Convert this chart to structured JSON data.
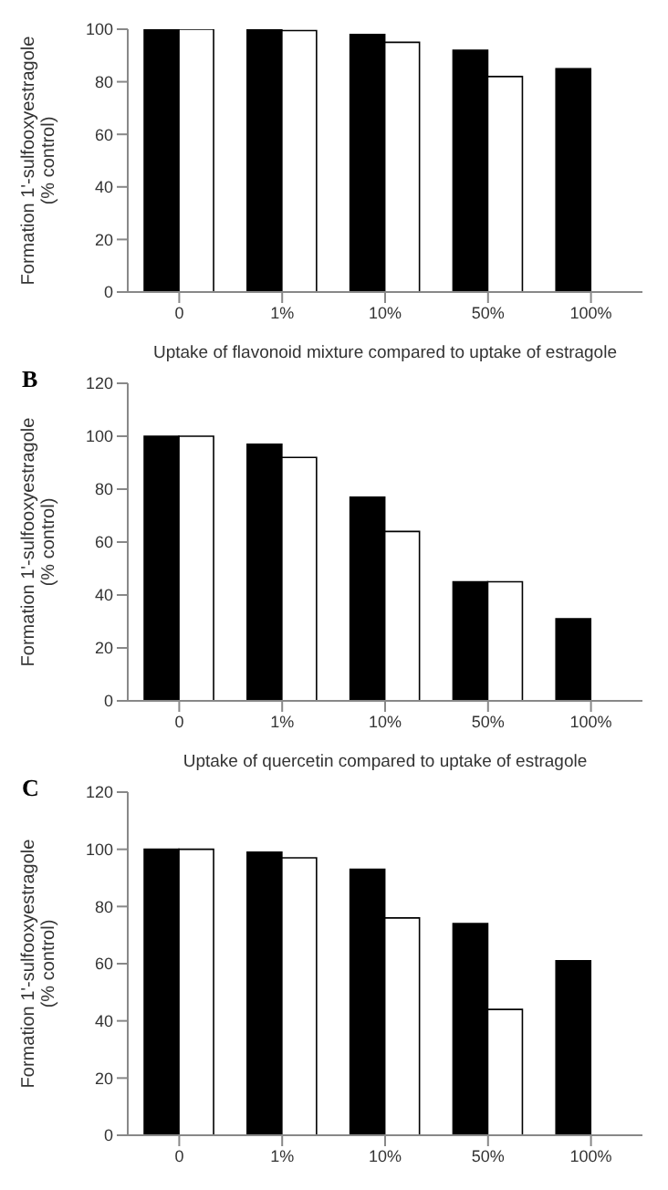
{
  "chart_data": [
    {
      "type": "bar",
      "xlabel": "Uptake of flavonoid mixture compared to uptake of estragole",
      "ylabel": "Formation 1'-sulfooxyestragole\n(% control)",
      "categories": [
        "0",
        "1%",
        "10%",
        "50%",
        "100%"
      ],
      "series": [
        {
          "color": "#000000",
          "values": [
            100,
            100,
            98,
            92,
            85
          ]
        },
        {
          "color": "#ffffff",
          "values": [
            100,
            99.5,
            95,
            82,
            null
          ]
        }
      ],
      "ylim": [
        0,
        100
      ],
      "yticks": [
        0,
        20,
        40,
        60,
        80,
        100
      ]
    },
    {
      "type": "bar",
      "title": "B",
      "xlabel": "Uptake of quercetin compared to uptake of estragole",
      "ylabel": "Formation 1'-sulfooxyestragole\n(% control)",
      "categories": [
        "0",
        "1%",
        "10%",
        "50%",
        "100%"
      ],
      "series": [
        {
          "color": "#000000",
          "values": [
            100,
            97,
            77,
            45,
            31
          ]
        },
        {
          "color": "#ffffff",
          "values": [
            100,
            92,
            64,
            45,
            null
          ]
        }
      ],
      "ylim": [
        0,
        120
      ],
      "yticks": [
        0,
        20,
        40,
        60,
        80,
        100,
        120
      ]
    },
    {
      "type": "bar",
      "title": "C",
      "ylabel": "Formation 1'-sulfooxyestragole\n(% control)",
      "categories": [
        "0",
        "1%",
        "10%",
        "50%",
        "100%"
      ],
      "series": [
        {
          "color": "#000000",
          "values": [
            100,
            99,
            93,
            74,
            61
          ]
        },
        {
          "color": "#ffffff",
          "values": [
            100,
            97,
            76,
            44,
            null
          ]
        }
      ],
      "ylim": [
        0,
        120
      ],
      "yticks": [
        0,
        20,
        40,
        60,
        80,
        100,
        120
      ]
    }
  ]
}
